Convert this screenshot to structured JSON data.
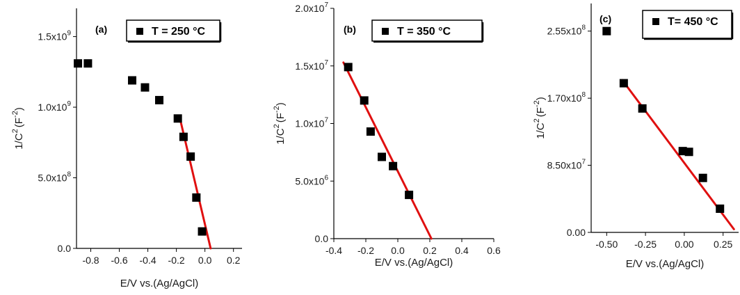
{
  "chart_data": [
    {
      "type": "scatter",
      "panel_label": "(a)",
      "legend": "T = 250 °C",
      "xlabel": "E/V vs.(Ag/AgCl)",
      "ylabel_base": "1/C",
      "ylabel_units": "(F",
      "x_tick_labels": [
        "-0.8",
        "-0.6",
        "-0.4",
        "-0.2",
        "0.0",
        "0.2"
      ],
      "y_tick_labels": [
        {
          "mant": "0.0",
          "exp": ""
        },
        {
          "mant": "5.0x10",
          "exp": "8"
        },
        {
          "mant": "1.0x10",
          "exp": "9"
        },
        {
          "mant": "1.5x10",
          "exp": "9"
        }
      ],
      "x_ticks": [
        -0.8,
        -0.6,
        -0.4,
        -0.2,
        0.0,
        0.2
      ],
      "y_ticks": [
        0,
        500000000,
        1000000000,
        1500000000
      ],
      "xlim": [
        -0.9,
        0.26
      ],
      "ylim": [
        0,
        1700000000
      ],
      "points": [
        {
          "x": -0.89,
          "y": 1310000000
        },
        {
          "x": -0.82,
          "y": 1310000000
        },
        {
          "x": -0.51,
          "y": 1190000000
        },
        {
          "x": -0.42,
          "y": 1140000000
        },
        {
          "x": -0.32,
          "y": 1050000000
        },
        {
          "x": -0.19,
          "y": 920000000
        },
        {
          "x": -0.15,
          "y": 790000000
        },
        {
          "x": -0.1,
          "y": 650000000
        },
        {
          "x": -0.06,
          "y": 360000000
        },
        {
          "x": -0.02,
          "y": 120000000
        }
      ],
      "fit": {
        "x1": -0.175,
        "y1": 920000000,
        "x2": 0.04,
        "y2": 0
      },
      "colors": {
        "marker": "#000000",
        "fit": "#e01010"
      }
    },
    {
      "type": "scatter",
      "panel_label": "(b)",
      "legend": "T = 350 °C",
      "xlabel": "E/V vs.(Ag/AgCl)",
      "ylabel_base": "1/C",
      "ylabel_units": "(F",
      "x_tick_labels": [
        "-0.4",
        "-0.2",
        "0.0",
        "0.2",
        "0.4",
        "0.6"
      ],
      "y_tick_labels": [
        {
          "mant": "0.0",
          "exp": ""
        },
        {
          "mant": "5.0x10",
          "exp": "6"
        },
        {
          "mant": "1.0x10",
          "exp": "7"
        },
        {
          "mant": "1.5x10",
          "exp": "7"
        },
        {
          "mant": "2.0x10",
          "exp": "7"
        }
      ],
      "x_ticks": [
        -0.4,
        -0.2,
        0.0,
        0.2,
        0.4,
        0.6
      ],
      "y_ticks": [
        0,
        5000000,
        10000000,
        15000000,
        20000000
      ],
      "xlim": [
        -0.4,
        0.6
      ],
      "ylim": [
        0,
        20000000
      ],
      "points": [
        {
          "x": -0.31,
          "y": 14900000
        },
        {
          "x": -0.21,
          "y": 12000000
        },
        {
          "x": -0.17,
          "y": 9300000
        },
        {
          "x": -0.1,
          "y": 7100000
        },
        {
          "x": -0.03,
          "y": 6300000
        },
        {
          "x": 0.07,
          "y": 3800000
        }
      ],
      "fit": {
        "x1": -0.34,
        "y1": 15300000,
        "x2": 0.21,
        "y2": 0
      },
      "colors": {
        "marker": "#000000",
        "fit": "#e01010"
      }
    },
    {
      "type": "scatter",
      "panel_label": "(c)",
      "legend": "T= 450 °C",
      "xlabel": "E/V vs.(Ag/AgCl)",
      "ylabel_base": "1/C",
      "ylabel_units": "(F",
      "x_tick_labels": [
        "-0.50",
        "-0.25",
        "0.00",
        "0.25"
      ],
      "y_tick_labels": [
        {
          "mant": "0.00",
          "exp": ""
        },
        {
          "mant": "8.50x10",
          "exp": "7"
        },
        {
          "mant": "1.70x10",
          "exp": "8"
        },
        {
          "mant": "2.55x10",
          "exp": "8"
        }
      ],
      "x_ticks": [
        -0.5,
        -0.25,
        0.0,
        0.25
      ],
      "y_ticks": [
        0,
        85000000,
        170000000,
        255000000
      ],
      "xlim": [
        -0.6,
        0.35
      ],
      "ylim": [
        0,
        290000000
      ],
      "points": [
        {
          "x": -0.5,
          "y": 255000000
        },
        {
          "x": -0.39,
          "y": 189000000
        },
        {
          "x": -0.27,
          "y": 157000000
        },
        {
          "x": -0.01,
          "y": 103000000
        },
        {
          "x": 0.03,
          "y": 102000000
        },
        {
          "x": 0.12,
          "y": 69000000
        },
        {
          "x": 0.23,
          "y": 30000000
        }
      ],
      "fit": {
        "x1": -0.4,
        "y1": 193000000,
        "x2": 0.32,
        "y2": 4000000
      },
      "colors": {
        "marker": "#000000",
        "fit": "#e01010"
      }
    }
  ]
}
